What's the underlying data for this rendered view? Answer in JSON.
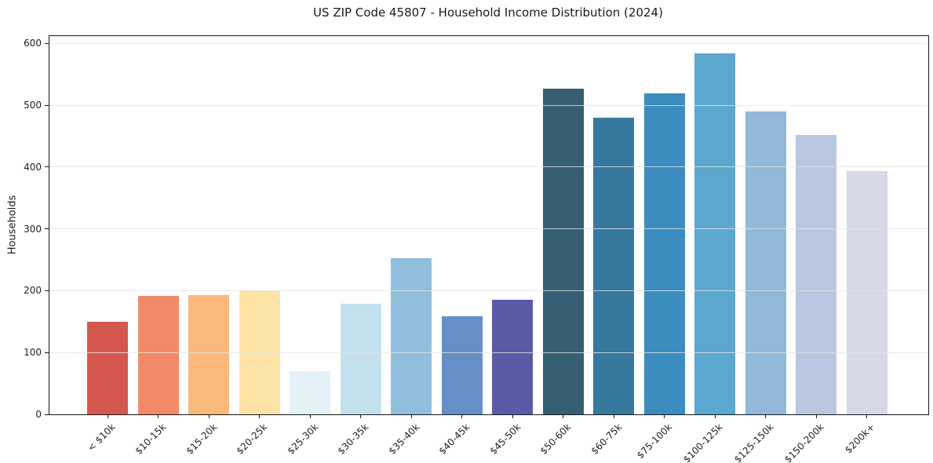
{
  "chart_data": {
    "type": "bar",
    "title": "US ZIP Code 45807 - Household Income Distribution (2024)",
    "xlabel": "",
    "ylabel": "Households",
    "categories": [
      "< $10k",
      "$10-15k",
      "$15-20k",
      "$20-25k",
      "$25-30k",
      "$30-35k",
      "$35-40k",
      "$40-45k",
      "$45-50k",
      "$50-60k",
      "$60-75k",
      "$75-100k",
      "$100-125k",
      "$125-150k",
      "$150-200k",
      "$200k+"
    ],
    "values": [
      150,
      192,
      193,
      200,
      70,
      179,
      253,
      159,
      185,
      527,
      480,
      519,
      584,
      490,
      452,
      394
    ],
    "bar_colors": [
      "#d5584e",
      "#f28a67",
      "#fbb87d",
      "#fde3a6",
      "#e4f1f6",
      "#c2e1ed",
      "#90bedd",
      "#6590c7",
      "#5a5ba8",
      "#355e73",
      "#36789e",
      "#3b8cbf",
      "#5ba7cd",
      "#92b8da",
      "#b9c8e0",
      "#d7d9e6"
    ],
    "yticks": [
      0,
      100,
      200,
      300,
      400,
      500,
      600
    ],
    "ylim": [
      0,
      612
    ],
    "grid": "horizontal",
    "legend": "none",
    "x_tick_rotation": 45,
    "grid_color": "#e5e5e5",
    "axis_color": "#1a1a1a",
    "text_color": "#1f1f1f",
    "background_color": "#ffffff"
  }
}
